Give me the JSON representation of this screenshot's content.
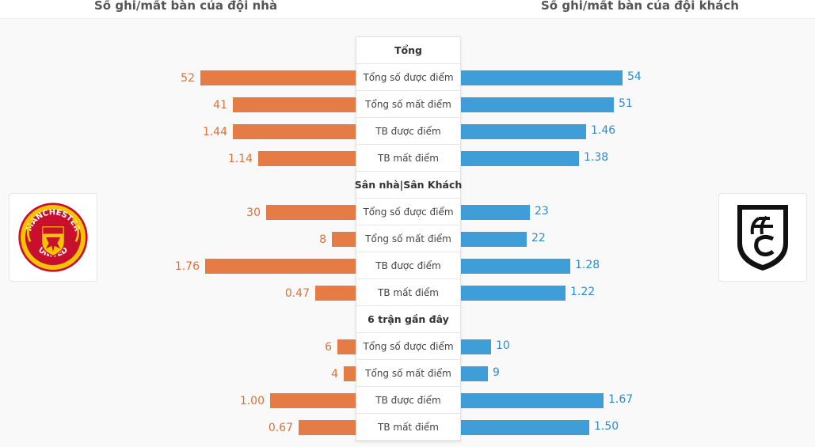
{
  "header": {
    "home_title": "Số ghi/mất bàn của đội nhà",
    "away_title": "Số ghi/mất bàn của đội khách"
  },
  "logos": {
    "home_text_top": "MANCHESTER",
    "home_text_bottom": "UNITED",
    "home_icon": "manchester-united-crest-icon",
    "away_icon": "fulham-crest-icon"
  },
  "sections": [
    {
      "title": "Tổng",
      "rows": [
        {
          "label": "Tổng số được điểm",
          "home": "52",
          "away": "54"
        },
        {
          "label": "Tổng số mất điểm",
          "home": "41",
          "away": "51"
        },
        {
          "label": "TB được điểm",
          "home": "1.44",
          "away": "1.46"
        },
        {
          "label": "TB mất điểm",
          "home": "1.14",
          "away": "1.38"
        }
      ]
    },
    {
      "title": "Sân nhà|Sân Khách",
      "rows": [
        {
          "label": "Tổng số được điểm",
          "home": "30",
          "away": "23"
        },
        {
          "label": "Tổng số mất điểm",
          "home": "8",
          "away": "22"
        },
        {
          "label": "TB được điểm",
          "home": "1.76",
          "away": "1.28"
        },
        {
          "label": "TB mất điểm",
          "home": "0.47",
          "away": "1.22"
        }
      ]
    },
    {
      "title": "6 trận gần đây",
      "rows": [
        {
          "label": "Tổng số được điểm",
          "home": "6",
          "away": "10"
        },
        {
          "label": "Tổng số mất điểm",
          "home": "4",
          "away": "9"
        },
        {
          "label": "TB được điểm",
          "home": "1.00",
          "away": "1.67"
        },
        {
          "label": "TB mất điểm",
          "home": "0.67",
          "away": "1.50"
        }
      ]
    }
  ],
  "colors": {
    "home_bar": "#e57c45",
    "away_bar": "#3f9dd8",
    "home_text": "#d9723a",
    "away_text": "#2f8cc9"
  }
}
